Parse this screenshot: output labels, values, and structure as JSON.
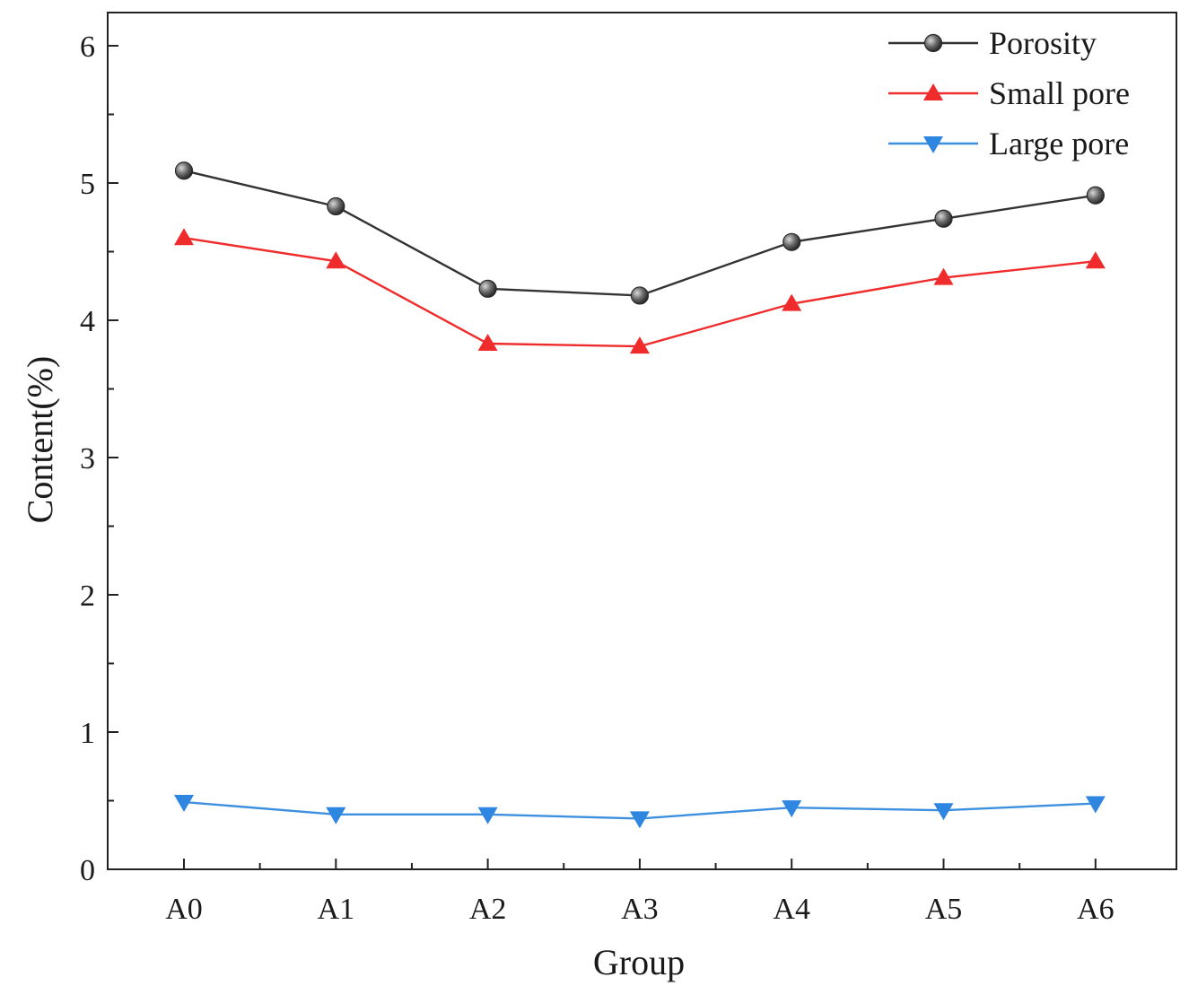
{
  "chart_data": {
    "type": "line",
    "title": "",
    "xlabel": "Group",
    "ylabel": "Content(%)",
    "categories": [
      "A0",
      "A1",
      "A2",
      "A3",
      "A4",
      "A5",
      "A6"
    ],
    "ylim": [
      0,
      6.3
    ],
    "yticks": [
      0,
      1,
      2,
      3,
      4,
      5,
      6
    ],
    "grid": false,
    "legend_position": "top-right",
    "series": [
      {
        "name": "Porosity",
        "marker": "circle",
        "color": "#333333",
        "marker_color": "#6e6e6e",
        "values": [
          5.09,
          4.83,
          4.23,
          4.18,
          4.57,
          4.74,
          4.91
        ]
      },
      {
        "name": "Small pore",
        "marker": "triangle-up",
        "color": "#ef2b2b",
        "marker_color": "#ef2b2b",
        "values": [
          4.6,
          4.43,
          3.83,
          3.81,
          4.12,
          4.31,
          4.43
        ]
      },
      {
        "name": "Large pore",
        "marker": "triangle-down",
        "color": "#3d8fe0",
        "marker_color": "#2f86e0",
        "values": [
          0.49,
          0.4,
          0.4,
          0.37,
          0.45,
          0.43,
          0.48
        ]
      }
    ]
  }
}
